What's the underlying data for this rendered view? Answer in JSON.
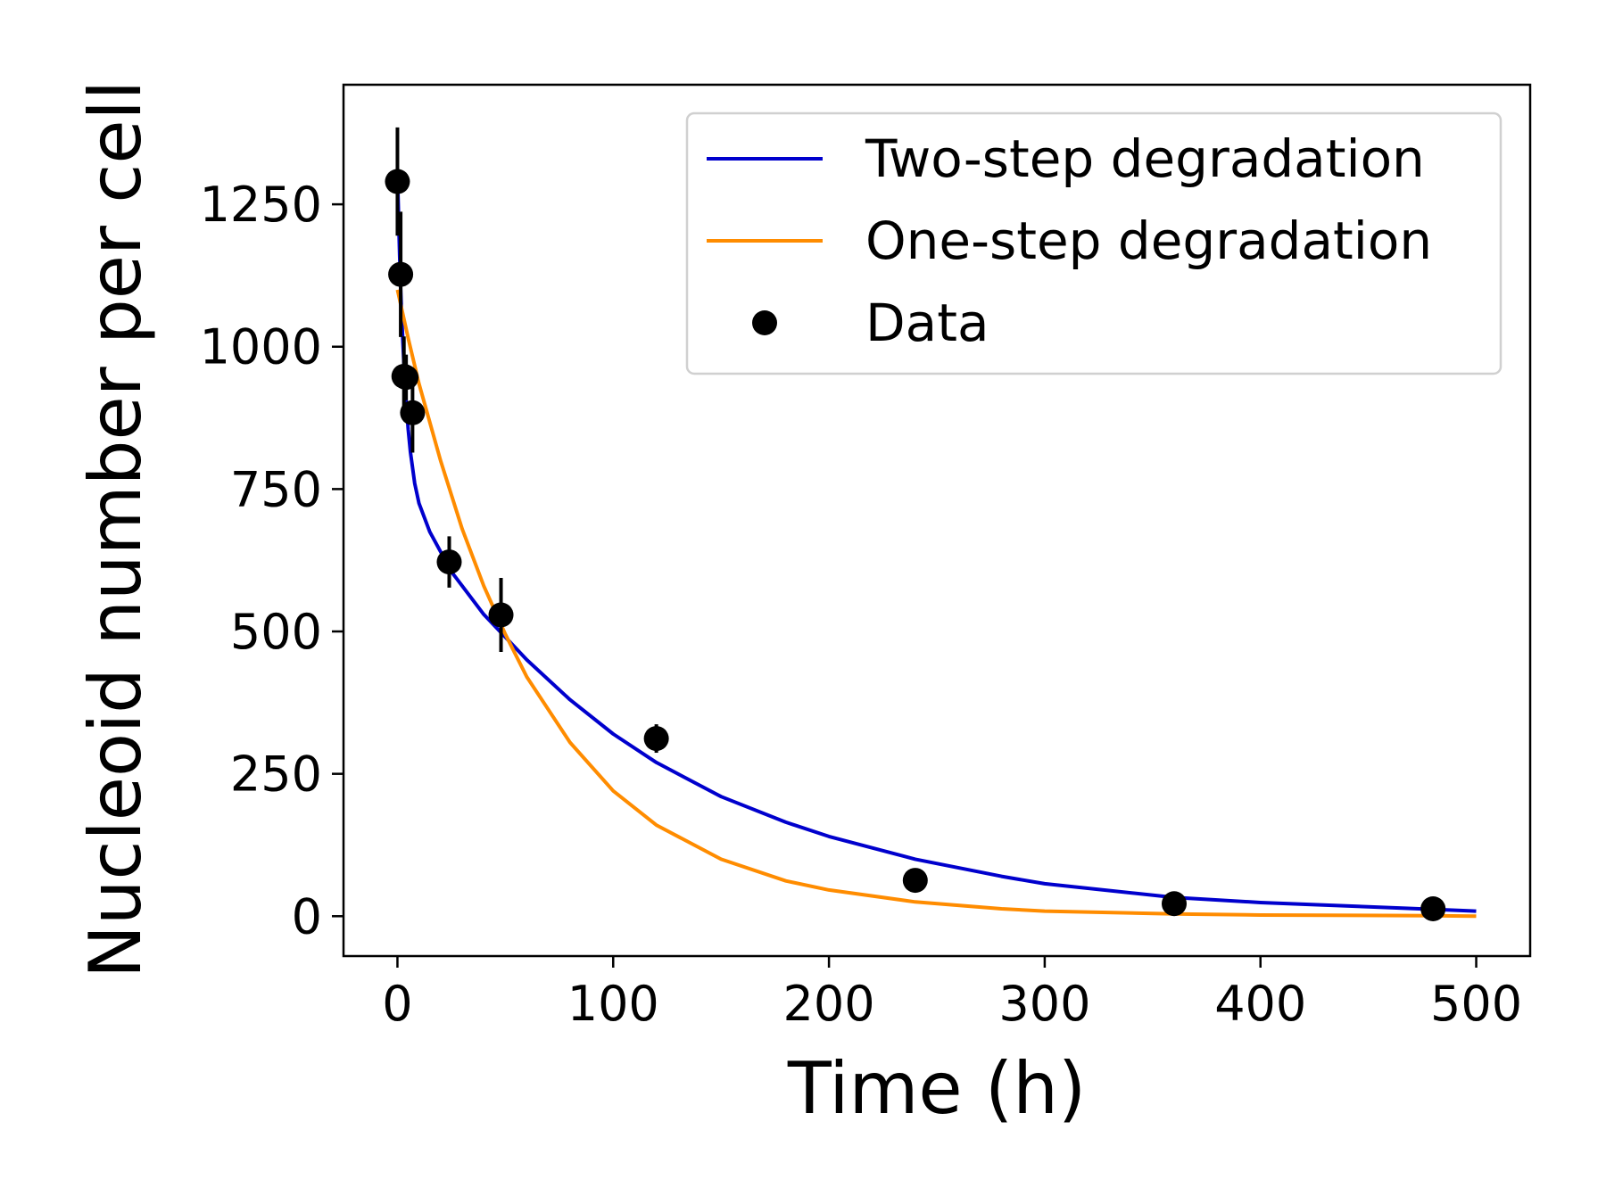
{
  "chart_data": {
    "type": "scatter",
    "title": "",
    "xlabel": "Time (h)",
    "ylabel": "Nucleoid number per cell",
    "xlim": [
      -25,
      525
    ],
    "ylim": [
      -70,
      1460
    ],
    "xticks": [
      0,
      100,
      200,
      300,
      400,
      500
    ],
    "yticks": [
      0,
      250,
      500,
      750,
      1000,
      1250
    ],
    "grid": false,
    "legend_position": "top-right",
    "series": [
      {
        "name": "Two-step degradation",
        "kind": "line",
        "color": "#0000cd",
        "x": [
          0,
          0.5,
          1,
          1.5,
          2,
          3,
          4,
          5,
          6,
          8,
          10,
          15,
          20,
          25,
          30,
          40,
          50,
          60,
          80,
          100,
          120,
          150,
          180,
          200,
          240,
          280,
          300,
          360,
          400,
          480,
          500
        ],
        "y": [
          1300,
          1230,
          1160,
          1100,
          1050,
          970,
          905,
          855,
          815,
          760,
          725,
          675,
          640,
          605,
          580,
          530,
          490,
          450,
          380,
          320,
          270,
          210,
          165,
          140,
          100,
          70,
          57,
          33,
          24,
          12,
          9
        ]
      },
      {
        "name": "One-step degradation",
        "kind": "line",
        "color": "#ff8c00",
        "x": [
          0,
          5,
          10,
          20,
          30,
          40,
          50,
          60,
          80,
          100,
          120,
          150,
          180,
          200,
          240,
          280,
          300,
          360,
          400,
          480,
          500
        ],
        "y": [
          1100,
          1015,
          935,
          800,
          680,
          580,
          495,
          420,
          305,
          220,
          160,
          100,
          62,
          46,
          25,
          13,
          9,
          4,
          2,
          1,
          0
        ]
      },
      {
        "name": "Data",
        "kind": "points",
        "color": "#000000",
        "x": [
          0,
          1.5,
          3,
          4,
          7,
          24,
          48,
          120,
          240,
          360,
          480
        ],
        "y": [
          1290,
          1127,
          948,
          946,
          884,
          622,
          529,
          312,
          63,
          22,
          13
        ],
        "yerr": [
          95,
          110,
          70,
          40,
          70,
          45,
          65,
          25,
          8,
          6,
          4
        ]
      }
    ]
  }
}
